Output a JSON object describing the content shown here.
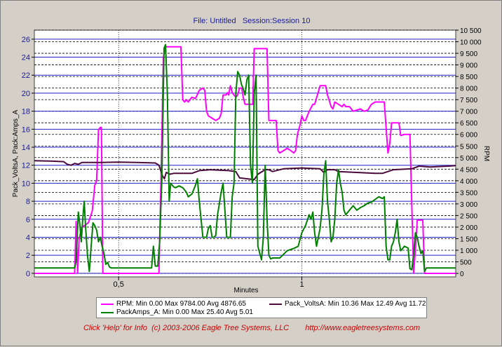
{
  "chart_data": {
    "type": "line",
    "title": "File: Untitled   Session:Session 10",
    "xlabel": "Minutes",
    "ylabel_left": "Pack_VoltsA, Pack:Amps_A",
    "ylabel_right": "RPM",
    "xlim": [
      0.27,
      1.42
    ],
    "x_ticks": [
      {
        "value": 0.5,
        "label": "0,5"
      },
      {
        "value": 1.0,
        "label": "1"
      }
    ],
    "ylim_left": [
      -0.4,
      27
    ],
    "y_ticks_left": [
      "0",
      "2",
      "4",
      "6",
      "8",
      "10",
      "12",
      "14",
      "16",
      "18",
      "20",
      "22",
      "24",
      "26"
    ],
    "ylim_right": [
      -150,
      10500
    ],
    "y_ticks_right": [
      "0",
      "500",
      "1 000",
      "1 500",
      "2 000",
      "2 500",
      "3 000",
      "3 500",
      "4 000",
      "4 500",
      "5 000",
      "5 500",
      "6 000",
      "6 500",
      "7 000",
      "7 500",
      "8 000",
      "8 500",
      "9 000",
      "9 500",
      "10 000",
      "10 500"
    ],
    "grid": true,
    "legend_position": "bottom",
    "series": [
      {
        "name": "RPM",
        "axis": "right",
        "color": "#ff00ff",
        "stats": "Min 0.00 Max 9784.00 Avg 4876.65",
        "points": [
          [
            0.27,
            0
          ],
          [
            0.35,
            0
          ],
          [
            0.38,
            0
          ],
          [
            0.384,
            2250
          ],
          [
            0.388,
            0
          ],
          [
            0.392,
            1500
          ],
          [
            0.4,
            2000
          ],
          [
            0.41,
            2100
          ],
          [
            0.418,
            2200
          ],
          [
            0.428,
            2700
          ],
          [
            0.435,
            3800
          ],
          [
            0.44,
            4000
          ],
          [
            0.445,
            6200
          ],
          [
            0.45,
            6300
          ],
          [
            0.453,
            6300
          ],
          [
            0.457,
            0
          ],
          [
            0.6,
            0
          ],
          [
            0.61,
            0
          ],
          [
            0.617,
            5000
          ],
          [
            0.622,
            9300
          ],
          [
            0.627,
            9784
          ],
          [
            0.65,
            9784
          ],
          [
            0.67,
            9784
          ],
          [
            0.675,
            7500
          ],
          [
            0.68,
            7400
          ],
          [
            0.685,
            7500
          ],
          [
            0.69,
            7400
          ],
          [
            0.7,
            7600
          ],
          [
            0.71,
            7550
          ],
          [
            0.72,
            7900
          ],
          [
            0.73,
            8000
          ],
          [
            0.735,
            7900
          ],
          [
            0.74,
            7000
          ],
          [
            0.745,
            6800
          ],
          [
            0.755,
            6700
          ],
          [
            0.765,
            6600
          ],
          [
            0.775,
            6700
          ],
          [
            0.78,
            6900
          ],
          [
            0.785,
            7700
          ],
          [
            0.793,
            7700
          ],
          [
            0.797,
            7800
          ],
          [
            0.8,
            7700
          ],
          [
            0.805,
            8100
          ],
          [
            0.81,
            7800
          ],
          [
            0.815,
            7700
          ],
          [
            0.82,
            7600
          ],
          [
            0.825,
            7700
          ],
          [
            0.83,
            8000
          ],
          [
            0.836,
            8000
          ],
          [
            0.84,
            7600
          ],
          [
            0.845,
            7300
          ],
          [
            0.85,
            7300
          ],
          [
            0.86,
            7300
          ],
          [
            0.866,
            7300
          ],
          [
            0.87,
            9700
          ],
          [
            0.89,
            9700
          ],
          [
            0.905,
            9700
          ],
          [
            0.91,
            6600
          ],
          [
            0.92,
            6600
          ],
          [
            0.93,
            6600
          ],
          [
            0.935,
            5300
          ],
          [
            0.94,
            5200
          ],
          [
            0.95,
            5300
          ],
          [
            0.96,
            5400
          ],
          [
            0.97,
            5300
          ],
          [
            0.978,
            5200
          ],
          [
            0.983,
            5300
          ],
          [
            0.988,
            6000
          ],
          [
            0.995,
            6400
          ],
          [
            1.0,
            6800
          ],
          [
            1.005,
            6600
          ],
          [
            1.01,
            6600
          ],
          [
            1.02,
            7000
          ],
          [
            1.03,
            7300
          ],
          [
            1.035,
            7300
          ],
          [
            1.05,
            8100
          ],
          [
            1.06,
            8100
          ],
          [
            1.065,
            8100
          ],
          [
            1.07,
            7700
          ],
          [
            1.08,
            7200
          ],
          [
            1.085,
            7100
          ],
          [
            1.09,
            7400
          ],
          [
            1.1,
            7300
          ],
          [
            1.11,
            7200
          ],
          [
            1.115,
            7300
          ],
          [
            1.12,
            7200
          ],
          [
            1.13,
            7200
          ],
          [
            1.14,
            7000
          ],
          [
            1.15,
            7050
          ],
          [
            1.16,
            7100
          ],
          [
            1.17,
            7000
          ],
          [
            1.18,
            7050
          ],
          [
            1.19,
            7300
          ],
          [
            1.2,
            7400
          ],
          [
            1.21,
            7400
          ],
          [
            1.225,
            7400
          ],
          [
            1.23,
            6300
          ],
          [
            1.235,
            5200
          ],
          [
            1.24,
            5600
          ],
          [
            1.245,
            6500
          ],
          [
            1.25,
            6500
          ],
          [
            1.265,
            6500
          ],
          [
            1.27,
            5950
          ],
          [
            1.28,
            6000
          ],
          [
            1.295,
            6000
          ],
          [
            1.3,
            3000
          ],
          [
            1.305,
            0
          ],
          [
            1.31,
            1000
          ],
          [
            1.315,
            2300
          ],
          [
            1.32,
            2300
          ],
          [
            1.33,
            2300
          ],
          [
            1.335,
            0
          ],
          [
            1.34,
            0
          ],
          [
            1.42,
            0
          ]
        ]
      },
      {
        "name": "Pack_VoltsA",
        "axis": "left",
        "color": "#4b0a3c",
        "stats": "Min 10.36 Max 12.49 Avg 11.72",
        "points": [
          [
            0.27,
            12.5
          ],
          [
            0.32,
            12.45
          ],
          [
            0.35,
            12.4
          ],
          [
            0.36,
            12.1
          ],
          [
            0.37,
            12.0
          ],
          [
            0.38,
            12.2
          ],
          [
            0.39,
            12.1
          ],
          [
            0.4,
            12.3
          ],
          [
            0.45,
            12.3
          ],
          [
            0.5,
            12.35
          ],
          [
            0.55,
            12.3
          ],
          [
            0.6,
            12.25
          ],
          [
            0.61,
            12.0
          ],
          [
            0.62,
            10.8
          ],
          [
            0.625,
            10.5
          ],
          [
            0.63,
            11.2
          ],
          [
            0.64,
            11.0
          ],
          [
            0.65,
            11.1
          ],
          [
            0.7,
            11.1
          ],
          [
            0.72,
            11.4
          ],
          [
            0.75,
            11.5
          ],
          [
            0.8,
            11.4
          ],
          [
            0.82,
            11.3
          ],
          [
            0.83,
            10.6
          ],
          [
            0.87,
            10.4
          ],
          [
            0.88,
            11.0
          ],
          [
            0.9,
            11.5
          ],
          [
            0.91,
            11.5
          ],
          [
            0.92,
            11.3
          ],
          [
            0.95,
            11.6
          ],
          [
            1.0,
            11.7
          ],
          [
            1.05,
            11.6
          ],
          [
            1.06,
            11.2
          ],
          [
            1.07,
            11.5
          ],
          [
            1.09,
            11.5
          ],
          [
            1.1,
            11.3
          ],
          [
            1.15,
            11.2
          ],
          [
            1.2,
            11.1
          ],
          [
            1.22,
            11.1
          ],
          [
            1.25,
            11.5
          ],
          [
            1.3,
            11.6
          ],
          [
            1.32,
            11.9
          ],
          [
            1.35,
            11.8
          ],
          [
            1.4,
            11.9
          ],
          [
            1.42,
            11.95
          ]
        ]
      },
      {
        "name": "PackAmps_A",
        "axis": "left",
        "color": "#008000",
        "stats": "Min 0.00 Max 25.40 Avg 5.01",
        "points": [
          [
            0.27,
            0.6
          ],
          [
            0.38,
            0.6
          ],
          [
            0.384,
            1.4
          ],
          [
            0.39,
            6.8
          ],
          [
            0.394,
            5.5
          ],
          [
            0.398,
            3.5
          ],
          [
            0.402,
            6.0
          ],
          [
            0.406,
            8.0
          ],
          [
            0.41,
            5.0
          ],
          [
            0.415,
            2.0
          ],
          [
            0.42,
            0.2
          ],
          [
            0.425,
            3.0
          ],
          [
            0.43,
            5.6
          ],
          [
            0.435,
            5.3
          ],
          [
            0.44,
            4.8
          ],
          [
            0.445,
            3.5
          ],
          [
            0.45,
            4.0
          ],
          [
            0.455,
            3.0
          ],
          [
            0.46,
            2.2
          ],
          [
            0.465,
            1.0
          ],
          [
            0.47,
            1.2
          ],
          [
            0.475,
            0.7
          ],
          [
            0.48,
            0.6
          ],
          [
            0.56,
            0.6
          ],
          [
            0.59,
            0.6
          ],
          [
            0.595,
            3.0
          ],
          [
            0.6,
            0.8
          ],
          [
            0.607,
            0.8
          ],
          [
            0.612,
            3.5
          ],
          [
            0.618,
            10.5
          ],
          [
            0.624,
            25.0
          ],
          [
            0.628,
            25.4
          ],
          [
            0.633,
            20.0
          ],
          [
            0.638,
            8.0
          ],
          [
            0.642,
            10.0
          ],
          [
            0.646,
            9.8
          ],
          [
            0.65,
            9.6
          ],
          [
            0.655,
            9.5
          ],
          [
            0.665,
            9.7
          ],
          [
            0.675,
            9.5
          ],
          [
            0.685,
            9.0
          ],
          [
            0.69,
            8.5
          ],
          [
            0.7,
            8.8
          ],
          [
            0.71,
            9.8
          ],
          [
            0.715,
            10.5
          ],
          [
            0.72,
            8.0
          ],
          [
            0.725,
            6.0
          ],
          [
            0.73,
            4.0
          ],
          [
            0.74,
            4.0
          ],
          [
            0.745,
            5.0
          ],
          [
            0.75,
            5.3
          ],
          [
            0.755,
            4.0
          ],
          [
            0.76,
            4.0
          ],
          [
            0.765,
            4.2
          ],
          [
            0.77,
            6.5
          ],
          [
            0.78,
            9.0
          ],
          [
            0.785,
            10.0
          ],
          [
            0.79,
            7.0
          ],
          [
            0.795,
            4.0
          ],
          [
            0.8,
            4.0
          ],
          [
            0.805,
            4.0
          ],
          [
            0.81,
            8.5
          ],
          [
            0.815,
            10.0
          ],
          [
            0.82,
            20.0
          ],
          [
            0.825,
            22.4
          ],
          [
            0.83,
            22.0
          ],
          [
            0.835,
            21.0
          ],
          [
            0.84,
            20.5
          ],
          [
            0.845,
            19.8
          ],
          [
            0.85,
            21.5
          ],
          [
            0.855,
            22.0
          ],
          [
            0.86,
            12.0
          ],
          [
            0.865,
            10.0
          ],
          [
            0.87,
            20.0
          ],
          [
            0.875,
            22.0
          ],
          [
            0.88,
            3.0
          ],
          [
            0.89,
            1.5
          ],
          [
            0.895,
            4.0
          ],
          [
            0.9,
            12.0
          ],
          [
            0.905,
            6.0
          ],
          [
            0.91,
            2.0
          ],
          [
            0.915,
            1.6
          ],
          [
            0.92,
            1.7
          ],
          [
            0.94,
            1.7
          ],
          [
            0.96,
            2.5
          ],
          [
            0.98,
            2.8
          ],
          [
            0.99,
            3.0
          ],
          [
            1.0,
            4.5
          ],
          [
            1.01,
            5.3
          ],
          [
            1.02,
            6.5
          ],
          [
            1.025,
            6.0
          ],
          [
            1.03,
            6.8
          ],
          [
            1.035,
            4.5
          ],
          [
            1.04,
            3.0
          ],
          [
            1.045,
            4.0
          ],
          [
            1.05,
            5.0
          ],
          [
            1.055,
            7.0
          ],
          [
            1.06,
            11.0
          ],
          [
            1.065,
            12.5
          ],
          [
            1.07,
            8.0
          ],
          [
            1.075,
            6.0
          ],
          [
            1.08,
            3.5
          ],
          [
            1.085,
            4.0
          ],
          [
            1.09,
            6.0
          ],
          [
            1.095,
            10.0
          ],
          [
            1.1,
            11.5
          ],
          [
            1.105,
            10.0
          ],
          [
            1.11,
            9.0
          ],
          [
            1.115,
            7.0
          ],
          [
            1.12,
            6.5
          ],
          [
            1.13,
            7.0
          ],
          [
            1.14,
            7.5
          ],
          [
            1.15,
            7.0
          ],
          [
            1.16,
            7.3
          ],
          [
            1.17,
            7.5
          ],
          [
            1.18,
            7.8
          ],
          [
            1.19,
            7.9
          ],
          [
            1.2,
            8.2
          ],
          [
            1.21,
            8.5
          ],
          [
            1.22,
            8.3
          ],
          [
            1.225,
            8.5
          ],
          [
            1.23,
            3.0
          ],
          [
            1.235,
            1.5
          ],
          [
            1.24,
            1.5
          ],
          [
            1.245,
            3.0
          ],
          [
            1.25,
            3.5
          ],
          [
            1.255,
            4.5
          ],
          [
            1.26,
            6.0
          ],
          [
            1.265,
            3.5
          ],
          [
            1.27,
            2.5
          ],
          [
            1.28,
            3.0
          ],
          [
            1.29,
            2.8
          ],
          [
            1.295,
            0.5
          ],
          [
            1.3,
            0.4
          ],
          [
            1.305,
            2.0
          ],
          [
            1.31,
            4.5
          ],
          [
            1.315,
            4.0
          ],
          [
            1.32,
            3.0
          ],
          [
            1.325,
            2.2
          ],
          [
            1.33,
            2.5
          ],
          [
            1.335,
            0.2
          ],
          [
            1.34,
            0.6
          ],
          [
            1.42,
            0.6
          ]
        ]
      }
    ]
  },
  "footer": {
    "help_text": "Click 'Help' for Info  (c) 2003-2006 Eagle Tree Systems, LLC",
    "url_text": "http://www.eagletreesystems.com"
  }
}
